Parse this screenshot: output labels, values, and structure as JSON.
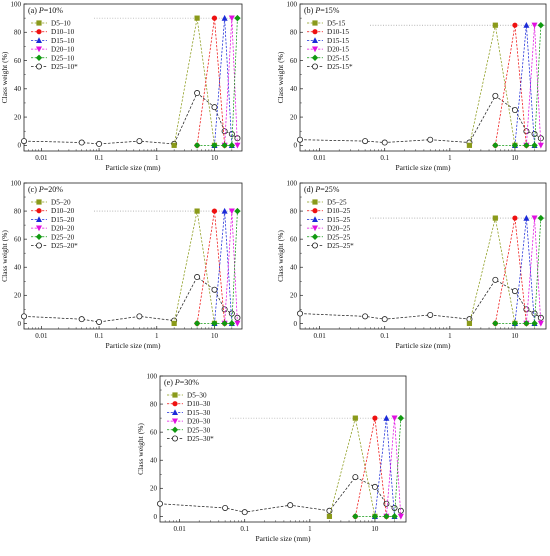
{
  "figure": {
    "series_colors": {
      "D5": "#8a9a1a",
      "D10": "#ee1111",
      "D15": "#1a2ad8",
      "D20": "#e010e0",
      "D25": "#119911",
      "star": "#222222"
    }
  },
  "chart_data": [
    {
      "type": "line",
      "panel_label": "(a)",
      "title_var": "P",
      "title_value": "=10%",
      "xlabel": "Particle size (mm)",
      "ylabel": "Class weight (%)",
      "x_scale": "log",
      "xlim": [
        0.005,
        30
      ],
      "ylim": [
        -4,
        100
      ],
      "x_ticks": [
        0.01,
        0.1,
        1,
        10
      ],
      "x_tick_labels": [
        "0.01",
        "0.1",
        "1",
        "10"
      ],
      "y_ticks": [
        0,
        20,
        40,
        60,
        80,
        100
      ],
      "y_tick_labels": [
        "0",
        "20",
        "40",
        "60",
        "80",
        "100"
      ],
      "peak_reference": 90,
      "legend_position": "top-left",
      "series": [
        {
          "name": "D5–10",
          "key": "D5",
          "marker": "square",
          "x": [
            2,
            5,
            10
          ],
          "y": [
            0,
            90,
            0
          ]
        },
        {
          "name": "D10–10",
          "key": "D10",
          "marker": "circle",
          "x": [
            5,
            10,
            15
          ],
          "y": [
            0,
            90,
            0
          ]
        },
        {
          "name": "D15–10",
          "key": "D15",
          "marker": "triangle-up",
          "x": [
            10,
            15,
            20
          ],
          "y": [
            0,
            90,
            0
          ]
        },
        {
          "name": "D20–10",
          "key": "D20",
          "marker": "triangle-down",
          "x": [
            15,
            20,
            25
          ],
          "y": [
            0,
            90,
            0
          ]
        },
        {
          "name": "D25–10",
          "key": "D25",
          "marker": "diamond",
          "x": [
            5,
            10,
            15,
            20,
            25
          ],
          "y": [
            0,
            0,
            0,
            0,
            90
          ]
        },
        {
          "name": "D25–10*",
          "key": "star",
          "marker": "open-circle",
          "x": [
            0.005,
            0.05,
            0.1,
            0.5,
            2,
            5,
            10,
            15,
            20,
            25
          ],
          "y": [
            3,
            2,
            1,
            3,
            1,
            37,
            27,
            10,
            8,
            5
          ]
        }
      ]
    },
    {
      "type": "line",
      "panel_label": "(b)",
      "title_var": "P",
      "title_value": "=15%",
      "xlabel": "Particle size (mm)",
      "ylabel": "Class weight (%)",
      "x_scale": "log",
      "xlim": [
        0.005,
        30
      ],
      "ylim": [
        -4,
        100
      ],
      "x_ticks": [
        0.01,
        0.1,
        1,
        10
      ],
      "x_tick_labels": [
        "0.01",
        "0.1",
        "1",
        "10"
      ],
      "y_ticks": [
        0,
        20,
        40,
        60,
        80,
        100
      ],
      "y_tick_labels": [
        "0",
        "20",
        "40",
        "60",
        "80",
        "100"
      ],
      "peak_reference": 85,
      "legend_position": "top-left",
      "series": [
        {
          "name": "D5-15",
          "key": "D5",
          "marker": "square",
          "x": [
            2,
            5,
            10
          ],
          "y": [
            0,
            85,
            0
          ]
        },
        {
          "name": "D10-15",
          "key": "D10",
          "marker": "circle",
          "x": [
            5,
            10,
            15
          ],
          "y": [
            0,
            85,
            0
          ]
        },
        {
          "name": "D15-15",
          "key": "D15",
          "marker": "triangle-up",
          "x": [
            10,
            15,
            20
          ],
          "y": [
            0,
            85,
            0
          ]
        },
        {
          "name": "D20-15",
          "key": "D20",
          "marker": "triangle-down",
          "x": [
            15,
            20,
            25
          ],
          "y": [
            0,
            85,
            0
          ]
        },
        {
          "name": "D25-15",
          "key": "D25",
          "marker": "diamond",
          "x": [
            5,
            10,
            15,
            20,
            25
          ],
          "y": [
            0,
            0,
            0,
            0,
            85
          ]
        },
        {
          "name": "D25-15*",
          "key": "star",
          "marker": "open-circle",
          "x": [
            0.005,
            0.05,
            0.1,
            0.5,
            2,
            5,
            10,
            15,
            20,
            25
          ],
          "y": [
            4,
            3,
            2,
            4,
            2,
            35,
            25,
            10,
            8,
            5
          ]
        }
      ]
    },
    {
      "type": "line",
      "panel_label": "(c)",
      "title_var": "P",
      "title_value": "=20%",
      "xlabel": "Particle size (mm)",
      "ylabel": "Class weight (%)",
      "x_scale": "log",
      "xlim": [
        0.005,
        30
      ],
      "ylim": [
        -4,
        100
      ],
      "x_ticks": [
        0.01,
        0.1,
        1,
        10
      ],
      "x_tick_labels": [
        "0.01",
        "0.1",
        "1",
        "10"
      ],
      "y_ticks": [
        0,
        20,
        40,
        60,
        80,
        100
      ],
      "y_tick_labels": [
        "0",
        "20",
        "40",
        "60",
        "80",
        "100"
      ],
      "peak_reference": 80,
      "legend_position": "top-left",
      "series": [
        {
          "name": "D5–20",
          "key": "D5",
          "marker": "square",
          "x": [
            2,
            5,
            10
          ],
          "y": [
            0,
            80,
            0
          ]
        },
        {
          "name": "D10–20",
          "key": "D10",
          "marker": "circle",
          "x": [
            5,
            10,
            15
          ],
          "y": [
            0,
            80,
            0
          ]
        },
        {
          "name": "D15–20",
          "key": "D15",
          "marker": "triangle-up",
          "x": [
            10,
            15,
            20
          ],
          "y": [
            0,
            80,
            0
          ]
        },
        {
          "name": "D20–20",
          "key": "D20",
          "marker": "triangle-down",
          "x": [
            15,
            20,
            25
          ],
          "y": [
            0,
            80,
            0
          ]
        },
        {
          "name": "D25–20",
          "key": "D25",
          "marker": "diamond",
          "x": [
            5,
            10,
            15,
            20,
            25
          ],
          "y": [
            0,
            0,
            0,
            0,
            80
          ]
        },
        {
          "name": "D25–20*",
          "key": "star",
          "marker": "open-circle",
          "x": [
            0.005,
            0.05,
            0.1,
            0.5,
            2,
            5,
            10,
            15,
            20,
            25
          ],
          "y": [
            5,
            3,
            1,
            5,
            2,
            33,
            24,
            10,
            7,
            4
          ]
        }
      ]
    },
    {
      "type": "line",
      "panel_label": "(d)",
      "title_var": "P",
      "title_value": "=25%",
      "xlabel": "Particle size (mm)",
      "ylabel": "Class weight (%)",
      "x_scale": "log",
      "xlim": [
        0.005,
        30
      ],
      "ylim": [
        -4,
        100
      ],
      "x_ticks": [
        0.01,
        0.1,
        1,
        10
      ],
      "x_tick_labels": [
        "0.01",
        "0.1",
        "1",
        "10"
      ],
      "y_ticks": [
        0,
        20,
        40,
        60,
        80,
        100
      ],
      "y_tick_labels": [
        "0",
        "20",
        "40",
        "60",
        "80",
        "100"
      ],
      "peak_reference": 75,
      "legend_position": "top-left",
      "series": [
        {
          "name": "D5–25",
          "key": "D5",
          "marker": "square",
          "x": [
            2,
            5,
            10
          ],
          "y": [
            0,
            75,
            0
          ]
        },
        {
          "name": "D10–25",
          "key": "D10",
          "marker": "circle",
          "x": [
            5,
            10,
            15
          ],
          "y": [
            0,
            75,
            0
          ]
        },
        {
          "name": "D15–25",
          "key": "D15",
          "marker": "triangle-up",
          "x": [
            10,
            15,
            20
          ],
          "y": [
            0,
            75,
            0
          ]
        },
        {
          "name": "D20–25",
          "key": "D20",
          "marker": "triangle-down",
          "x": [
            15,
            20,
            25
          ],
          "y": [
            0,
            75,
            0
          ]
        },
        {
          "name": "D25–25",
          "key": "D25",
          "marker": "diamond",
          "x": [
            5,
            10,
            15,
            20,
            25
          ],
          "y": [
            0,
            0,
            0,
            0,
            75
          ]
        },
        {
          "name": "D25–25*",
          "key": "star",
          "marker": "open-circle",
          "x": [
            0.005,
            0.05,
            0.1,
            0.5,
            2,
            5,
            10,
            15,
            20,
            25
          ],
          "y": [
            7,
            5,
            3,
            6,
            3,
            31,
            23,
            10,
            7,
            4
          ]
        }
      ]
    },
    {
      "type": "line",
      "panel_label": "(e)",
      "title_var": "P",
      "title_value": "=30%",
      "xlabel": "Particle size (mm)",
      "ylabel": "Class weight (%)",
      "x_scale": "log",
      "xlim": [
        0.005,
        30
      ],
      "ylim": [
        -4,
        100
      ],
      "x_ticks": [
        0.01,
        0.1,
        1,
        10
      ],
      "x_tick_labels": [
        "0.01",
        "0.1",
        "1",
        "10"
      ],
      "y_ticks": [
        0,
        20,
        40,
        60,
        80,
        100
      ],
      "y_tick_labels": [
        "0",
        "20",
        "40",
        "60",
        "80",
        "100"
      ],
      "peak_reference": 70,
      "legend_position": "top-left",
      "series": [
        {
          "name": "D5–30",
          "key": "D5",
          "marker": "square",
          "x": [
            2,
            5,
            10
          ],
          "y": [
            0,
            70,
            0
          ]
        },
        {
          "name": "D10–30",
          "key": "D10",
          "marker": "circle",
          "x": [
            5,
            10,
            15
          ],
          "y": [
            0,
            70,
            0
          ]
        },
        {
          "name": "D15–30",
          "key": "D15",
          "marker": "triangle-up",
          "x": [
            10,
            15,
            20
          ],
          "y": [
            0,
            70,
            0
          ]
        },
        {
          "name": "D20–30",
          "key": "D20",
          "marker": "triangle-down",
          "x": [
            15,
            20,
            25
          ],
          "y": [
            0,
            70,
            0
          ]
        },
        {
          "name": "D25–30",
          "key": "D25",
          "marker": "diamond",
          "x": [
            5,
            10,
            15,
            20,
            25
          ],
          "y": [
            0,
            0,
            0,
            0,
            70
          ]
        },
        {
          "name": "D25–30*",
          "key": "star",
          "marker": "open-circle",
          "x": [
            0.005,
            0.05,
            0.1,
            0.5,
            2,
            5,
            10,
            15,
            20,
            25
          ],
          "y": [
            9,
            6,
            3,
            8,
            4,
            28,
            21,
            9,
            6,
            4
          ]
        }
      ]
    }
  ]
}
